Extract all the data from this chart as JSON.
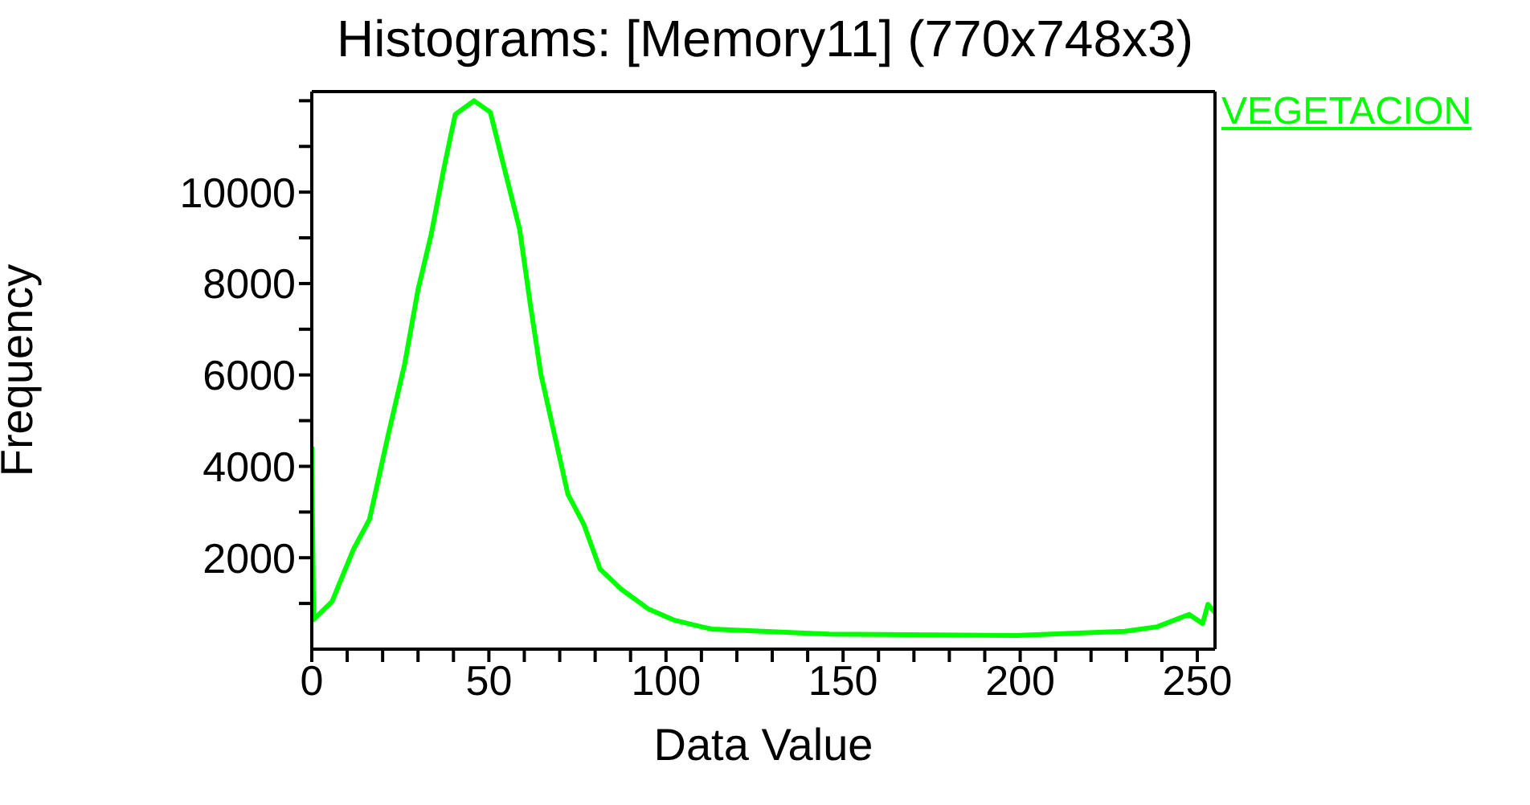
{
  "chart_data": {
    "type": "line",
    "title": "Histograms: [Memory11] (770x748x3)",
    "xlabel": "Data Value",
    "ylabel": "Frequency",
    "xlim": [
      0,
      255
    ],
    "ylim": [
      0,
      12200
    ],
    "xticks": [
      0,
      {
        "value": 10,
        "label": null
      },
      {
        "value": 20,
        "label": null
      },
      {
        "value": 30,
        "label": null
      },
      {
        "value": 40,
        "label": null
      },
      50,
      {
        "value": 60,
        "label": null
      },
      {
        "value": 70,
        "label": null
      },
      {
        "value": 80,
        "label": null
      },
      {
        "value": 90,
        "label": null
      },
      100,
      {
        "value": 110,
        "label": null
      },
      {
        "value": 120,
        "label": null
      },
      {
        "value": 130,
        "label": null
      },
      {
        "value": 140,
        "label": null
      },
      150,
      {
        "value": 160,
        "label": null
      },
      {
        "value": 170,
        "label": null
      },
      {
        "value": 180,
        "label": null
      },
      {
        "value": 190,
        "label": null
      },
      200,
      {
        "value": 210,
        "label": null
      },
      {
        "value": 220,
        "label": null
      },
      {
        "value": 230,
        "label": null
      },
      {
        "value": 240,
        "label": null
      },
      250
    ],
    "yticks": [
      {
        "value": 1000,
        "label": null
      },
      2000,
      {
        "value": 3000,
        "label": null
      },
      4000,
      {
        "value": 5000,
        "label": null
      },
      6000,
      {
        "value": 7000,
        "label": null
      },
      8000,
      {
        "value": 9000,
        "label": null
      },
      10000,
      {
        "value": 11000,
        "label": null
      },
      {
        "value": 12000,
        "label": null
      }
    ],
    "legend": "top right",
    "marker": "none",
    "line_style": "solid",
    "series": [
      {
        "name": "VEGETACION",
        "color": "#00ff00",
        "x": [
          0,
          0.5,
          5.7,
          11.8,
          16.3,
          21.6,
          26.2,
          30,
          33.7,
          37.5,
          40.5,
          45.8,
          50.4,
          54.1,
          58.7,
          61.7,
          64.7,
          68.5,
          72.3,
          76.8,
          81.4,
          87.4,
          95,
          102.5,
          110,
          113,
          146,
          199,
          229.6,
          238.7,
          247.7,
          251.5,
          253,
          255
        ],
        "values": [
          4430,
          650,
          1040,
          2190,
          2840,
          4700,
          6230,
          7870,
          9070,
          10600,
          11700,
          12000,
          11750,
          10600,
          9180,
          7540,
          6010,
          4700,
          3390,
          2730,
          1750,
          1310,
          880,
          630,
          490,
          440,
          330,
          300,
          390,
          490,
          760,
          560,
          980,
          800
        ]
      }
    ]
  }
}
